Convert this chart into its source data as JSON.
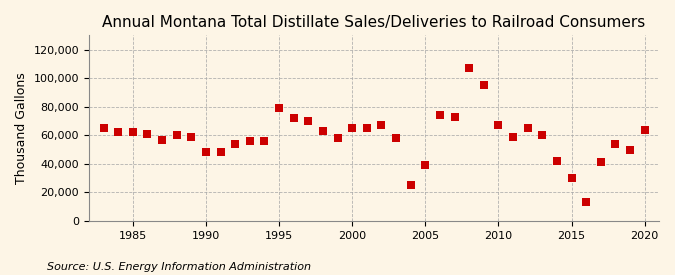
{
  "title": "Annual Montana Total Distillate Sales/Deliveries to Railroad Consumers",
  "ylabel": "Thousand Gallons",
  "source": "Source: U.S. Energy Information Administration",
  "years": [
    1983,
    1984,
    1985,
    1986,
    1987,
    1988,
    1989,
    1990,
    1991,
    1992,
    1993,
    1994,
    1995,
    1996,
    1997,
    1998,
    1999,
    2000,
    2001,
    2002,
    2003,
    2004,
    2005,
    2006,
    2007,
    2008,
    2009,
    2010,
    2011,
    2012,
    2013,
    2014,
    2015,
    2016,
    2017,
    2018,
    2019,
    2020
  ],
  "values": [
    65000,
    62000,
    62000,
    61000,
    57000,
    60000,
    59000,
    48000,
    48000,
    54000,
    56000,
    56000,
    79000,
    72000,
    70000,
    63000,
    58000,
    65000,
    65000,
    67000,
    58000,
    25000,
    39000,
    74000,
    73000,
    107000,
    95000,
    67000,
    59000,
    65000,
    60000,
    42000,
    30000,
    13000,
    41000,
    54000,
    50000,
    64000
  ],
  "marker_color": "#cc0000",
  "marker_size": 30,
  "bg_color": "#fdf5e6",
  "grid_color": "#aaaaaa",
  "title_fontsize": 11,
  "label_fontsize": 9,
  "source_fontsize": 8,
  "tick_fontsize": 8,
  "ylim": [
    0,
    130000
  ],
  "yticks": [
    0,
    20000,
    40000,
    60000,
    80000,
    100000,
    120000
  ],
  "xlim": [
    1982,
    2021
  ],
  "xticks": [
    1985,
    1990,
    1995,
    2000,
    2005,
    2010,
    2015,
    2020
  ]
}
